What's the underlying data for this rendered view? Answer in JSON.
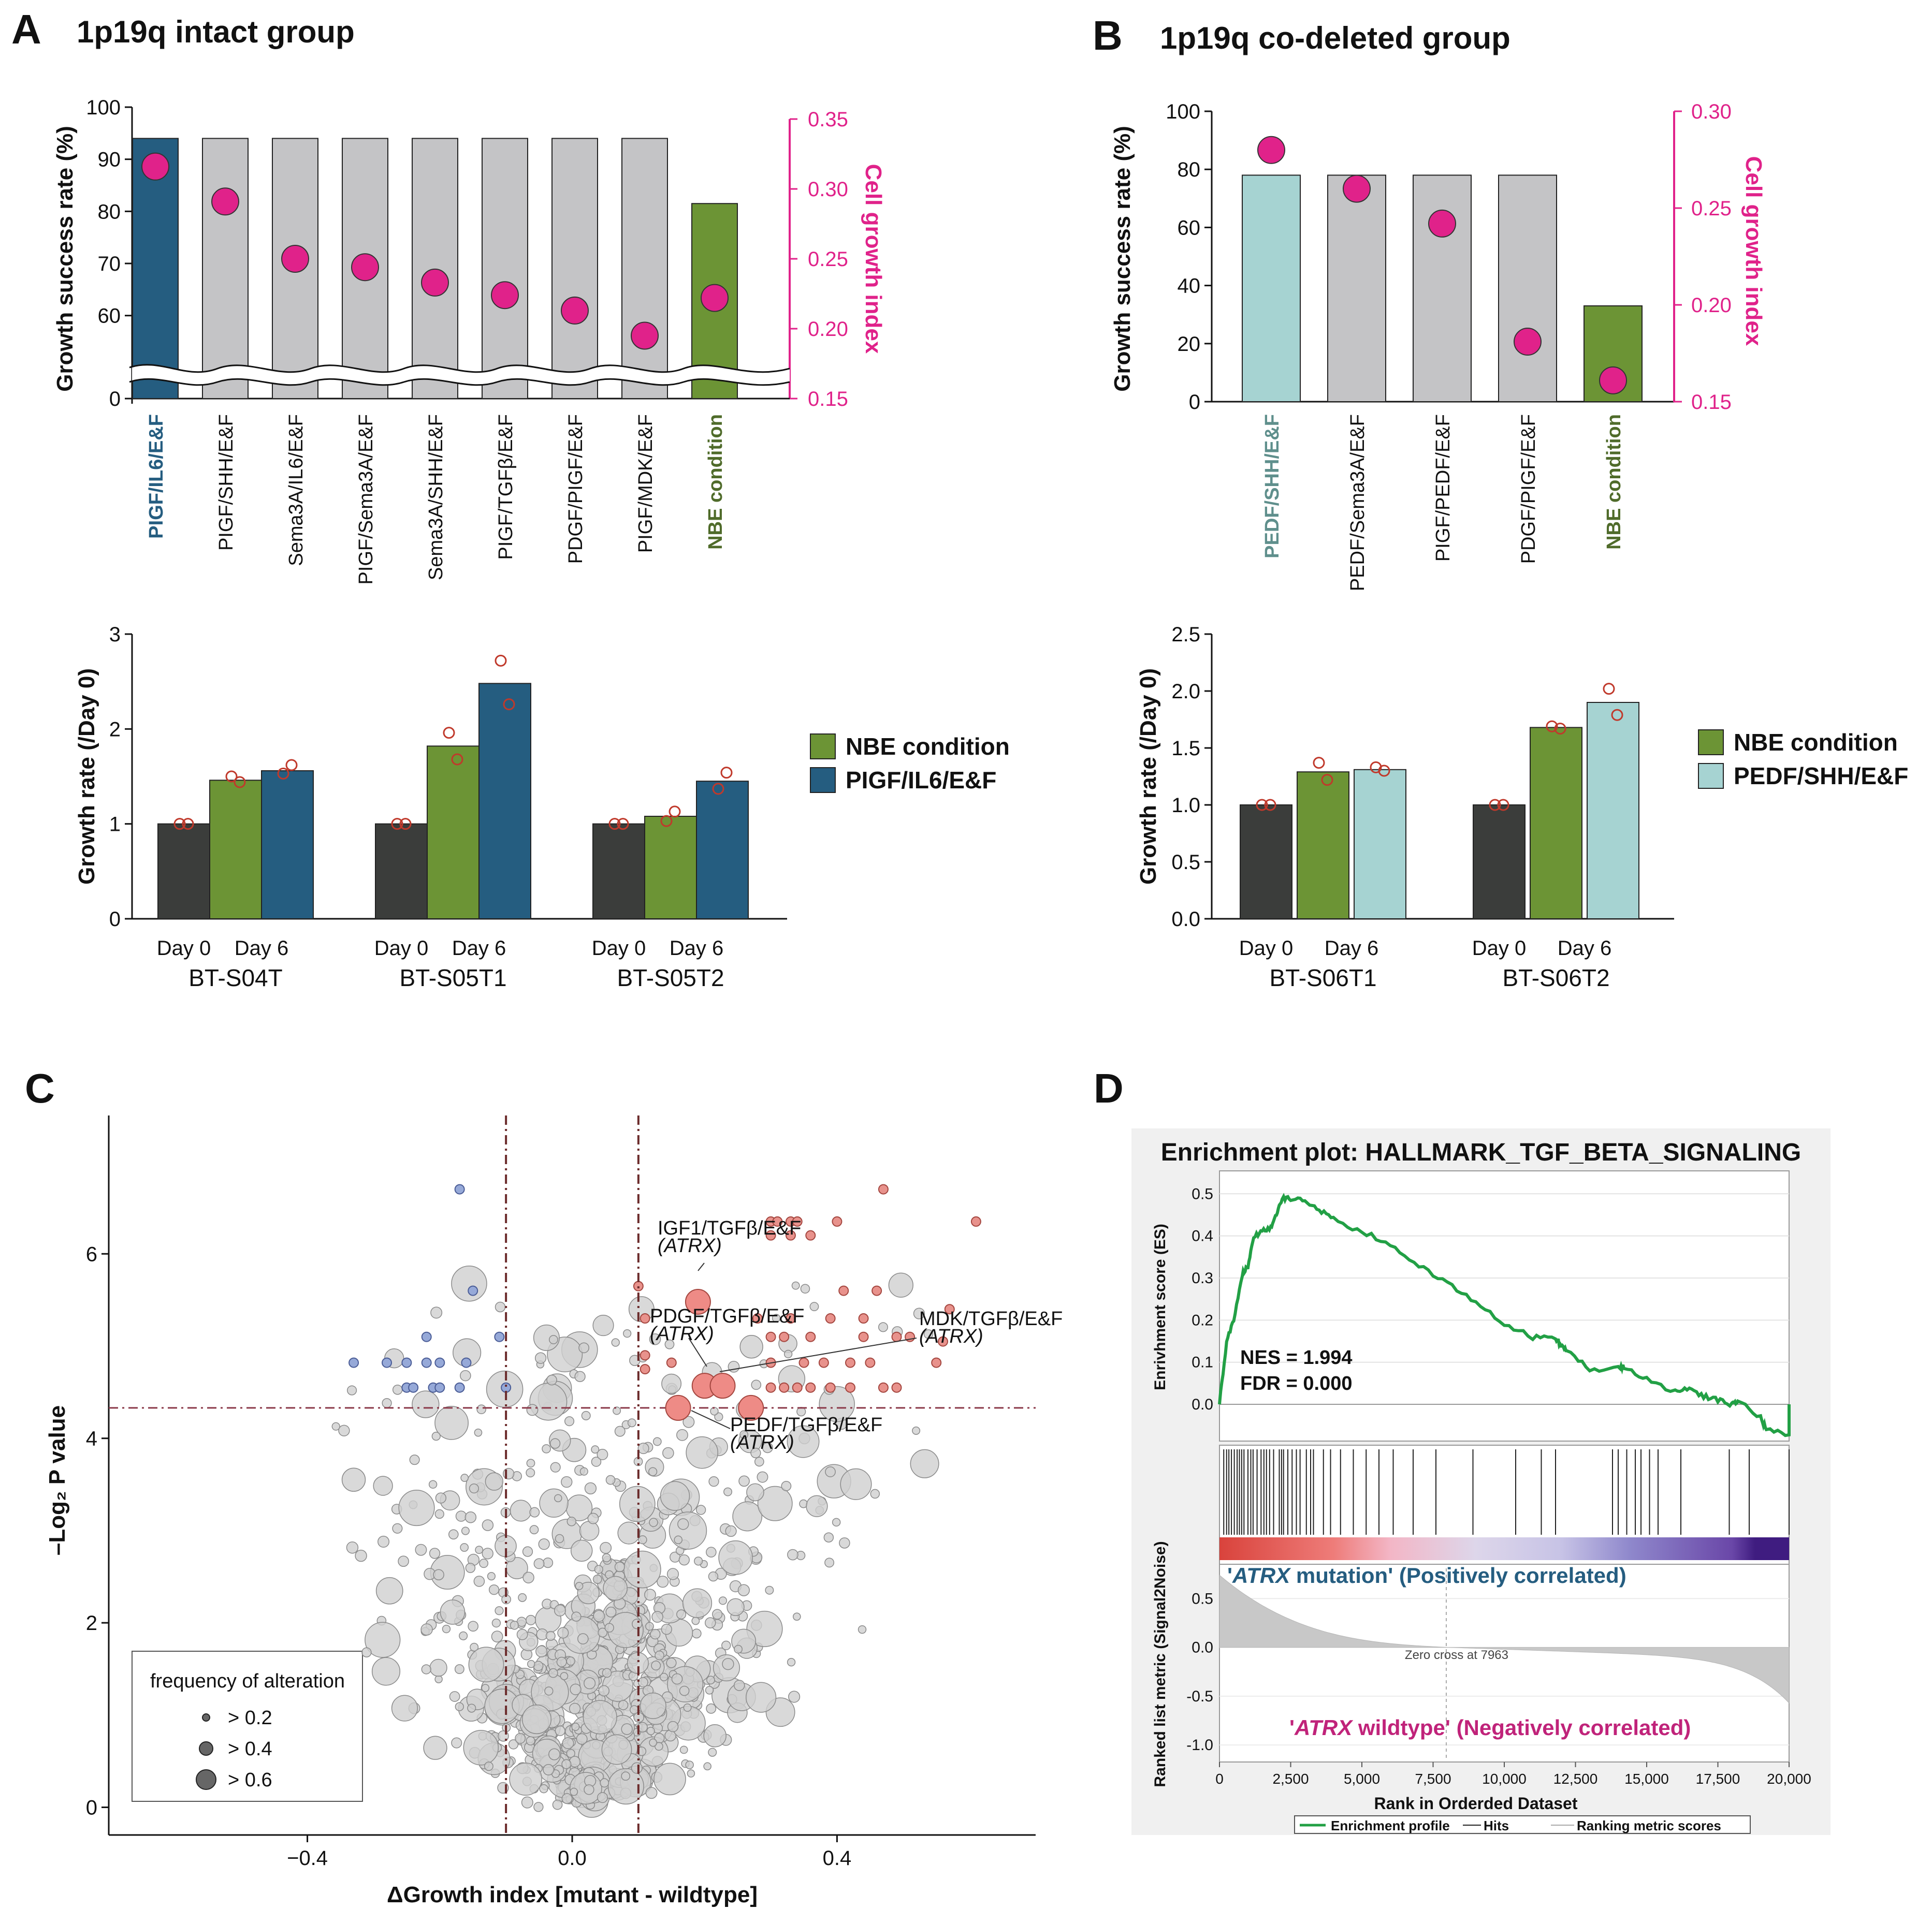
{
  "panels": {
    "A": "A",
    "B": "B",
    "C": "C",
    "D": "D"
  },
  "chart_data": [
    {
      "id": "A_top",
      "type": "bar",
      "title": "1p19q intact group",
      "categories": [
        "PIGF/IL6/E&F",
        "PIGF/SHH/E&F",
        "Sema3A/IL6/E&F",
        "PIGF/Sema3A/E&F",
        "Sema3A/SHH/E&F",
        "PIGF/TGFβ/E&F",
        "PDGF/PIGF/E&F",
        "PIGF/MDK/E&F",
        "NBE condition"
      ],
      "values": [
        94,
        94,
        94,
        94,
        94,
        94,
        94,
        94,
        81.5
      ],
      "bar_colors": [
        "#255d80",
        "#c4c4c6",
        "#c4c4c6",
        "#c4c4c6",
        "#c4c4c6",
        "#c4c4c6",
        "#c4c4c6",
        "#c4c4c6",
        "#6c9435"
      ],
      "label_colors": [
        "#255d80",
        "#111111",
        "#111111",
        "#111111",
        "#111111",
        "#111111",
        "#111111",
        "#111111",
        "#4f6b2a"
      ],
      "label_bold": [
        true,
        false,
        false,
        false,
        false,
        false,
        false,
        false,
        true
      ],
      "index_values": [
        0.316,
        0.291,
        0.25,
        0.244,
        0.233,
        0.224,
        0.213,
        0.195,
        0.222
      ],
      "ylabel": "Growth success rate (%)",
      "y2label": "Cell growth index",
      "ylim_broken": [
        55,
        100
      ],
      "yticks": [
        0,
        60,
        70,
        80,
        90,
        100
      ],
      "y2lim": [
        0.15,
        0.35
      ],
      "y2ticks": [
        "0.15",
        "0.20",
        "0.25",
        "0.30",
        "0.35"
      ],
      "marker_color": "#e0228a"
    },
    {
      "id": "B_top",
      "type": "bar",
      "title": "1p19q co-deleted group",
      "categories": [
        "PEDF/SHH/E&F",
        "PEDF/Sema3A/E&F",
        "PIGF/PEDF/E&F",
        "PDGF/PIGF/E&F",
        "NBE condition"
      ],
      "values": [
        78,
        78,
        78,
        78,
        33
      ],
      "bar_colors": [
        "#a6d3d2",
        "#c4c4c6",
        "#c4c4c6",
        "#c4c4c6",
        "#6c9435"
      ],
      "label_colors": [
        "#5f8f8c",
        "#111111",
        "#111111",
        "#111111",
        "#4f6b2a"
      ],
      "label_bold": [
        true,
        false,
        false,
        false,
        true
      ],
      "index_values": [
        0.28,
        0.26,
        0.242,
        0.181,
        0.161
      ],
      "ylabel": "Growth success rate (%)",
      "y2label": "Cell growth index",
      "ylim": [
        0,
        100
      ],
      "yticks": [
        "0",
        "20",
        "40",
        "60",
        "80",
        "100"
      ],
      "y2lim": [
        0.15,
        0.3
      ],
      "y2ticks": [
        "0.15",
        "0.20",
        "0.25",
        "0.30"
      ],
      "marker_color": "#e0228a"
    },
    {
      "id": "A_bottom",
      "type": "bar",
      "ylabel": "Growth rate (/Day 0)",
      "ylim": [
        0,
        3
      ],
      "yticks": [
        "0",
        "1",
        "2",
        "3"
      ],
      "groups": [
        "BT-S04T",
        "BT-S05T1",
        "BT-S05T2"
      ],
      "x_labels": [
        "Day 0",
        "Day 6"
      ],
      "series": [
        {
          "name": "Day 0",
          "values": [
            1.0,
            1.0,
            1.0
          ],
          "color": "#3b3d3b",
          "points": [
            [
              1.0,
              1.0
            ],
            [
              1.0,
              1.0
            ],
            [
              1.0,
              1.0
            ]
          ]
        },
        {
          "name": "NBE condition",
          "values": [
            1.46,
            1.82,
            1.08
          ],
          "color": "#6c9435",
          "points": [
            [
              1.5,
              1.44
            ],
            [
              1.96,
              1.68
            ],
            [
              1.03,
              1.13
            ]
          ]
        },
        {
          "name": "PIGF/IL6/E&F",
          "values": [
            1.56,
            2.48,
            1.45
          ],
          "color": "#255d80",
          "points": [
            [
              1.53,
              1.62
            ],
            [
              2.72,
              2.26
            ],
            [
              1.37,
              1.54
            ]
          ]
        }
      ],
      "legend": [
        "NBE condition",
        "PIGF/IL6/E&F"
      ],
      "point_color": "#c0392b"
    },
    {
      "id": "B_bottom",
      "type": "bar",
      "ylabel": "Growth rate (/Day 0)",
      "ylim": [
        0,
        2.5
      ],
      "yticks": [
        "0.0",
        "0.5",
        "1.0",
        "1.5",
        "2.0",
        "2.5"
      ],
      "groups": [
        "BT-S06T1",
        "BT-S06T2"
      ],
      "x_labels": [
        "Day 0",
        "Day 6"
      ],
      "series": [
        {
          "name": "Day 0",
          "values": [
            1.0,
            1.0
          ],
          "color": "#3b3d3b",
          "points": [
            [
              1.0,
              1.0
            ],
            [
              1.0,
              1.0
            ]
          ]
        },
        {
          "name": "NBE condition",
          "values": [
            1.29,
            1.68
          ],
          "color": "#6c9435",
          "points": [
            [
              1.37,
              1.22
            ],
            [
              1.69,
              1.67
            ]
          ]
        },
        {
          "name": "PEDF/SHH/E&F",
          "values": [
            1.31,
            1.9
          ],
          "color": "#a6d3d2",
          "points": [
            [
              1.33,
              1.3
            ],
            [
              2.02,
              1.79
            ]
          ]
        }
      ],
      "legend": [
        "NBE condition",
        "PEDF/SHH/E&F"
      ],
      "point_color": "#c0392b"
    },
    {
      "id": "C",
      "type": "scatter",
      "xlabel": "ΔGrowth index [mutant - wildtype]",
      "ylabel": "–Log₂ P value",
      "xlim": [
        -0.7,
        0.7
      ],
      "ylim": [
        -0.3,
        7.5
      ],
      "xticks": [
        "−0.4",
        "0.0",
        "0.4"
      ],
      "yticks": [
        "0",
        "2",
        "4",
        "6"
      ],
      "vlines": [
        -0.1,
        0.1
      ],
      "hline": 4.33,
      "blue_points": [
        [
          -0.33,
          4.82
        ],
        [
          -0.28,
          4.82
        ],
        [
          -0.25,
          4.82
        ],
        [
          -0.22,
          4.82
        ],
        [
          -0.2,
          4.82
        ],
        [
          -0.16,
          4.82
        ],
        [
          -0.22,
          5.1
        ],
        [
          -0.25,
          4.55
        ],
        [
          -0.24,
          4.55
        ],
        [
          -0.21,
          4.55
        ],
        [
          -0.2,
          4.55
        ],
        [
          -0.17,
          4.55
        ],
        [
          -0.1,
          4.55
        ],
        [
          -0.15,
          5.6
        ],
        [
          -0.17,
          6.7
        ],
        [
          -0.11,
          5.1
        ]
      ],
      "red_points": [
        [
          0.47,
          6.7
        ],
        [
          0.3,
          6.35
        ],
        [
          0.31,
          6.35
        ],
        [
          0.33,
          6.35
        ],
        [
          0.34,
          6.35
        ],
        [
          0.4,
          6.35
        ],
        [
          0.61,
          6.35
        ],
        [
          0.3,
          6.2
        ],
        [
          0.33,
          6.2
        ],
        [
          0.36,
          6.2
        ],
        [
          0.1,
          5.65
        ],
        [
          0.41,
          5.6
        ],
        [
          0.46,
          5.6
        ],
        [
          0.11,
          5.3
        ],
        [
          0.28,
          5.3
        ],
        [
          0.33,
          5.3
        ],
        [
          0.39,
          5.3
        ],
        [
          0.44,
          5.3
        ],
        [
          0.57,
          5.4
        ],
        [
          0.3,
          5.1
        ],
        [
          0.32,
          5.1
        ],
        [
          0.36,
          5.1
        ],
        [
          0.44,
          5.1
        ],
        [
          0.49,
          5.1
        ],
        [
          0.51,
          5.1
        ],
        [
          0.56,
          5.05
        ],
        [
          0.11,
          4.9
        ],
        [
          0.15,
          4.82
        ],
        [
          0.3,
          4.82
        ],
        [
          0.35,
          4.82
        ],
        [
          0.38,
          4.82
        ],
        [
          0.42,
          4.82
        ],
        [
          0.45,
          4.82
        ],
        [
          0.55,
          4.82
        ],
        [
          0.3,
          4.55
        ],
        [
          0.32,
          4.55
        ],
        [
          0.34,
          4.55
        ],
        [
          0.36,
          4.55
        ],
        [
          0.39,
          4.55
        ],
        [
          0.42,
          4.55
        ],
        [
          0.47,
          4.55
        ],
        [
          0.49,
          4.55
        ],
        [
          0.11,
          4.75
        ]
      ],
      "highlight": [
        {
          "label": "IGF1/TGFβ/E&F",
          "sub": "(ATRX)",
          "x": 0.19,
          "y": 5.48
        },
        {
          "label": "PDGF/TGFβ/E&F",
          "sub": "(ATRX)",
          "x": 0.2,
          "y": 4.57
        },
        {
          "label": "MDK/TGFβ/E&F",
          "sub": "(ATRX)",
          "x": 0.21,
          "y": 4.57
        },
        {
          "label": "PEDF/TGFβ/E&F",
          "sub": "(ATRX)",
          "x": 0.16,
          "y": 4.33
        },
        {
          "label": "",
          "sub": "",
          "x": 0.27,
          "y": 4.33
        }
      ],
      "legend_title": "frequency of alteration",
      "legend_items": [
        "> 0.2",
        "> 0.4",
        "> 0.6"
      ]
    },
    {
      "id": "D",
      "type": "line",
      "title": "Enrichment plot: HALLMARK_TGF_BETA_SIGNALING",
      "x": [
        0,
        250,
        500,
        800,
        1000,
        1200,
        1500,
        1800,
        2000,
        2200,
        2500,
        3000,
        3500,
        4000,
        5000,
        6000,
        7000,
        8000,
        9000,
        10000,
        11000,
        11800,
        12000,
        12200,
        13000,
        14000,
        14200,
        15000,
        16000,
        16500,
        17000,
        17500,
        18000,
        18200,
        19000,
        19200,
        20000
      ],
      "es": [
        0,
        0.15,
        0.2,
        0.31,
        0.33,
        0.4,
        0.41,
        0.42,
        0.45,
        0.49,
        0.49,
        0.48,
        0.46,
        0.44,
        0.41,
        0.38,
        0.33,
        0.29,
        0.24,
        0.19,
        0.16,
        0.155,
        0.14,
        0.13,
        0.08,
        0.09,
        0.09,
        0.06,
        0.03,
        0.04,
        0.02,
        0.01,
        0,
        0.01,
        -0.03,
        -0.06,
        -0.07
      ],
      "ylabel_es": "Enrivhment score (ES)",
      "es_ticks": [
        "0.0",
        "0.1",
        "0.2",
        "0.3",
        "0.4",
        "0.5"
      ],
      "es_lim": [
        -0.07,
        0.52
      ],
      "nes": "NES = 1.994",
      "fdr": "FDR = 0.000",
      "hits": [
        150,
        250,
        330,
        420,
        520,
        620,
        700,
        780,
        860,
        1000,
        1100,
        1180,
        1320,
        1460,
        1560,
        1650,
        1760,
        1900,
        2100,
        2180,
        2250,
        2400,
        2550,
        2700,
        2830,
        3050,
        3200,
        3300,
        3650,
        3900,
        4250,
        4700,
        5150,
        5600,
        6100,
        6800,
        7600,
        8900,
        10400,
        11300,
        11800,
        13800,
        14000,
        14300,
        14600,
        14800,
        15100,
        15400,
        16200,
        17900,
        18600,
        20000
      ],
      "atrx_mut": "ATRX",
      "mut_text": " mutation' (Positively correlated)",
      "mut_open": "'",
      "atrx_wt": "ATRX",
      "wt_text": " wildtype' (Negatively correlated)",
      "wt_open": "'",
      "metric_ylabel": "Ranked list metric (Signal2Noise)",
      "metric_ticks": [
        "0.5",
        "0.0",
        "-0.5",
        "-1.0"
      ],
      "zero_cross": "Zero cross at 7963",
      "xlabel": "Rank in Orderded Dataset",
      "xticks": [
        "0",
        "2,500",
        "5,000",
        "7,500",
        "10,000",
        "12,500",
        "15,000",
        "17,500",
        "20,000"
      ],
      "legend": [
        "Enrichment profile",
        "Hits",
        "Ranking metric scores"
      ],
      "colors": {
        "es": "#22a045",
        "mut": "#255d80",
        "wt": "#c0237a"
      }
    }
  ]
}
